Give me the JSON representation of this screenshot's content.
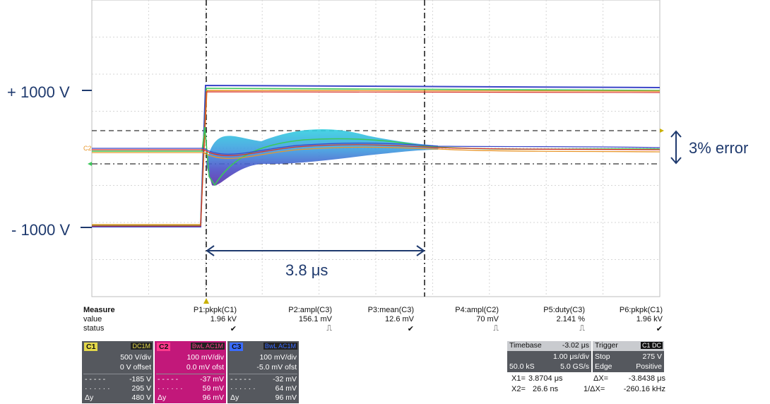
{
  "annotations": {
    "plus_level": "+ 1000 V",
    "minus_level": "- 1000 V",
    "error_band": "3% error",
    "settle_time": "3.8 μs"
  },
  "measure": {
    "header": "Measure",
    "row_value": "value",
    "row_status": "status",
    "params": [
      {
        "name": "P1:pkpk(C1)",
        "value": "1.96 kV",
        "status": "✔"
      },
      {
        "name": "P2:ampl(C3)",
        "value": "156.1 mV",
        "status": "⎍"
      },
      {
        "name": "P3:mean(C3)",
        "value": "12.6 mV",
        "status": "✔"
      },
      {
        "name": "P4:ampl(C2)",
        "value": "70 mV",
        "status": "⎍"
      },
      {
        "name": "P5:duty(C3)",
        "value": "2.141 %",
        "status": "⎍"
      },
      {
        "name": "P6:pkpk(C1)",
        "value": "1.96 kV",
        "status": "✔"
      }
    ]
  },
  "channels": [
    {
      "tag": "C1",
      "tag_color": "#e3d84a",
      "badge": "DC1M",
      "badge_color": "#e3d84a",
      "scale": "500 V/div",
      "offset": "0 V offset",
      "c1": "-185 V",
      "c2": "295 V",
      "dy_label": "Δy",
      "dy": "480 V",
      "bg": "#55585e"
    },
    {
      "tag": "C2",
      "tag_color": "#ff3a8c",
      "badge": "BwL AC1M",
      "badge_color": "#ff3a8c",
      "scale": "100 mV/div",
      "offset": "0.0 mV ofst",
      "c1": "-37 mV",
      "c2": "59 mV",
      "dy_label": "Δy",
      "dy": "96 mV",
      "bg": "#c2187a"
    },
    {
      "tag": "C3",
      "tag_color": "#3a6cff",
      "badge": "BwL AC1M",
      "badge_color": "#3a6cff",
      "scale": "100 mV/div",
      "offset": "-5.0 mV ofst",
      "c1": "-32 mV",
      "c2": "64 mV",
      "dy_label": "Δy",
      "dy": "96 mV",
      "bg": "#55585e"
    }
  ],
  "timebase": {
    "label": "Timebase",
    "delay": "-3.02 μs",
    "scale": "1.00 μs/div",
    "samples": "50.0 kS",
    "rate": "5.0 GS/s"
  },
  "trigger": {
    "label": "Trigger",
    "badge": "C1 DC",
    "mode": "Stop",
    "level": "275 V",
    "type": "Edge",
    "slope": "Positive"
  },
  "cursors": {
    "x1_label": "X1=",
    "x1": "3.8704 μs",
    "dx_label": "ΔX=",
    "dx": "-3.8438 μs",
    "x2_label": "X2=",
    "x2": "26.6 ns",
    "inv_dx_label": "1/ΔX=",
    "inv_dx": "-260.16 kHz"
  }
}
